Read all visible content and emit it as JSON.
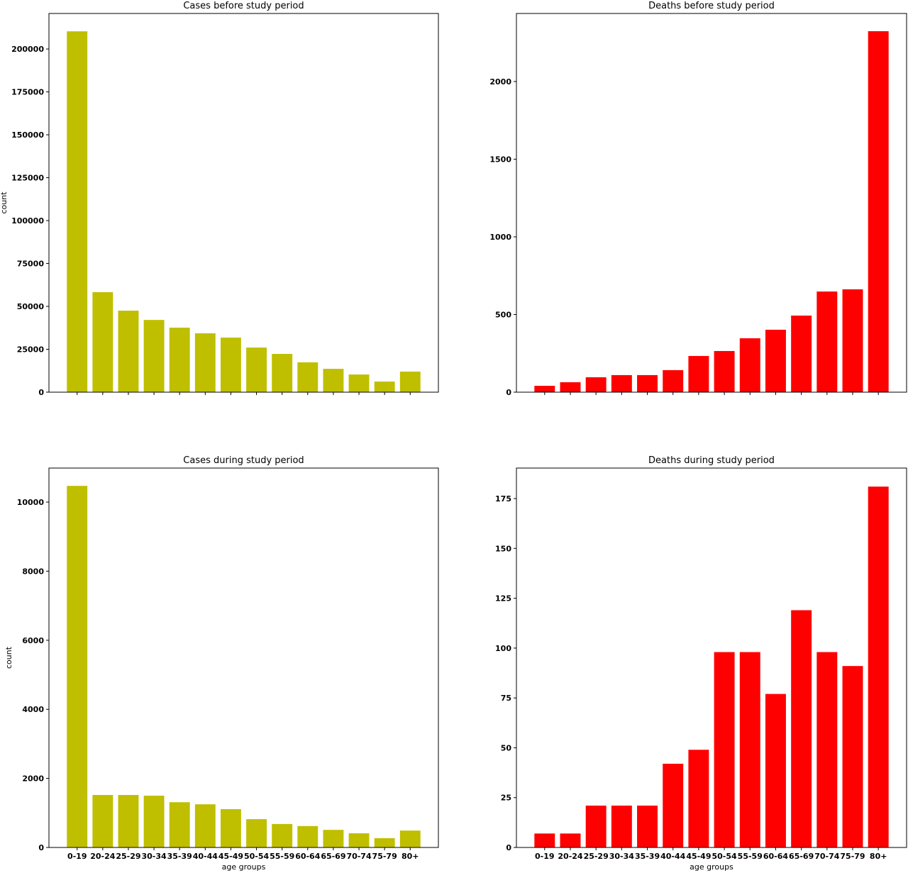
{
  "chart_data": [
    {
      "type": "bar",
      "title": "Cases before study period",
      "ylabel": "count",
      "xlabel": "",
      "categories": [
        "0-19",
        "20-24",
        "25-29",
        "30-34",
        "35-39",
        "40-44",
        "45-49",
        "50-54",
        "55-59",
        "60-64",
        "65-69",
        "70-74",
        "75-79",
        "80+"
      ],
      "values": [
        210300,
        58300,
        47500,
        42100,
        37600,
        34300,
        31800,
        26000,
        22300,
        17400,
        13600,
        10300,
        6200,
        12000
      ],
      "ylim": [
        0,
        220700
      ],
      "yticks": [
        0,
        25000,
        50000,
        75000,
        100000,
        125000,
        150000,
        175000,
        200000
      ],
      "show_xticklabels": false,
      "color": "#bfbf00"
    },
    {
      "type": "bar",
      "title": "Deaths before study period",
      "ylabel": "",
      "xlabel": "",
      "categories": [
        "0-19",
        "20-24",
        "25-29",
        "30-34",
        "35-39",
        "40-44",
        "45-49",
        "50-54",
        "55-59",
        "60-64",
        "65-69",
        "70-74",
        "75-79",
        "80+"
      ],
      "values": [
        41,
        64,
        96,
        110,
        110,
        142,
        233,
        265,
        347,
        402,
        493,
        648,
        662,
        2324
      ],
      "ylim": [
        0,
        2438
      ],
      "yticks": [
        0,
        500,
        1000,
        1500,
        2000
      ],
      "show_xticklabels": false,
      "color": "#ff0000"
    },
    {
      "type": "bar",
      "title": "Cases during study period",
      "ylabel": "count",
      "xlabel": "age groups",
      "categories": [
        "0-19",
        "20-24",
        "25-29",
        "30-34",
        "35-39",
        "40-44",
        "45-49",
        "50-54",
        "55-59",
        "60-64",
        "65-69",
        "70-74",
        "75-79",
        "80+"
      ],
      "values": [
        10470,
        1520,
        1520,
        1500,
        1310,
        1250,
        1110,
        820,
        680,
        620,
        510,
        410,
        270,
        490
      ],
      "ylim": [
        0,
        10986
      ],
      "yticks": [
        0,
        2000,
        4000,
        6000,
        8000,
        10000
      ],
      "show_xticklabels": true,
      "color": "#bfbf00"
    },
    {
      "type": "bar",
      "title": "Deaths during study period",
      "ylabel": "",
      "xlabel": "age groups",
      "categories": [
        "0-19",
        "20-24",
        "25-29",
        "30-34",
        "35-39",
        "40-44",
        "45-49",
        "50-54",
        "55-59",
        "60-64",
        "65-69",
        "70-74",
        "75-79",
        "80+"
      ],
      "values": [
        7,
        7,
        21,
        21,
        21,
        42,
        49,
        98,
        98,
        77,
        119,
        98,
        91,
        181
      ],
      "ylim": [
        0,
        190.3
      ],
      "yticks": [
        0,
        25,
        50,
        75,
        100,
        125,
        150,
        175
      ],
      "show_xticklabels": true,
      "color": "#ff0000"
    }
  ]
}
